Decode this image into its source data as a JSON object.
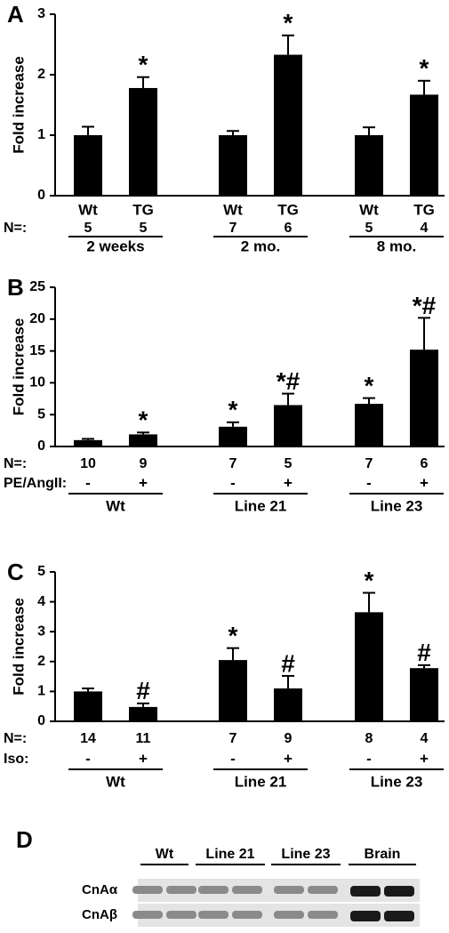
{
  "chart_data": [
    {
      "type": "bar",
      "panel": "A",
      "ylabel": "Fold increase",
      "categories": [
        "Wt",
        "TG",
        "Wt",
        "TG",
        "Wt",
        "TG"
      ],
      "values": [
        1,
        1.78,
        1,
        2.33,
        1,
        1.67
      ],
      "errors": [
        0.14,
        0.18,
        0.07,
        0.32,
        0.13,
        0.23
      ],
      "annotations": [
        null,
        "*",
        null,
        "*",
        null,
        "*"
      ],
      "n_label": "N=:",
      "n": [
        5,
        5,
        7,
        6,
        5,
        4
      ],
      "groups": [
        "2 weeks",
        "2 mo.",
        "8 mo."
      ],
      "color": "#000000",
      "ylim": [
        0,
        3
      ],
      "yticks": [
        0,
        1,
        2,
        3
      ]
    },
    {
      "type": "bar",
      "panel": "B",
      "ylabel": "Fold increase",
      "category_label": "PE/AngII:",
      "categories": [
        "-",
        "+",
        "-",
        "+",
        "-",
        "+"
      ],
      "values": [
        1,
        1.9,
        3.1,
        6.5,
        6.7,
        15.2
      ],
      "errors": [
        0.2,
        0.3,
        0.7,
        1.8,
        0.9,
        5
      ],
      "annotations": [
        null,
        "*",
        "*",
        "*#",
        "*",
        "*#"
      ],
      "n_label": "N=:",
      "n": [
        10,
        9,
        7,
        5,
        7,
        6
      ],
      "groups": [
        "Wt",
        "Line 21",
        "Line 23"
      ],
      "color": "#000000",
      "ylim": [
        0,
        25
      ],
      "yticks": [
        0,
        5,
        10,
        15,
        20,
        25
      ]
    },
    {
      "type": "bar",
      "panel": "C",
      "ylabel": "Fold increase",
      "category_label": "Iso:",
      "categories": [
        "-",
        "+",
        "-",
        "+",
        "-",
        "+"
      ],
      "values": [
        1,
        0.48,
        2.05,
        1.1,
        3.65,
        1.78
      ],
      "errors": [
        0.1,
        0.12,
        0.4,
        0.42,
        0.65,
        0.1
      ],
      "annotations": [
        null,
        "#",
        "*",
        "#",
        "*",
        "#"
      ],
      "n_label": "N=:",
      "n": [
        14,
        11,
        7,
        9,
        8,
        4
      ],
      "groups": [
        "Wt",
        "Line 21",
        "Line 23"
      ],
      "color": "#000000",
      "ylim": [
        0,
        5
      ],
      "yticks": [
        0,
        1,
        2,
        3,
        4,
        5
      ]
    }
  ],
  "blot": {
    "panel": "D",
    "lanes": [
      "Wt",
      "Line 21",
      "Line 23",
      "Brain"
    ],
    "rows": [
      "CnAα",
      "CnAβ"
    ]
  }
}
